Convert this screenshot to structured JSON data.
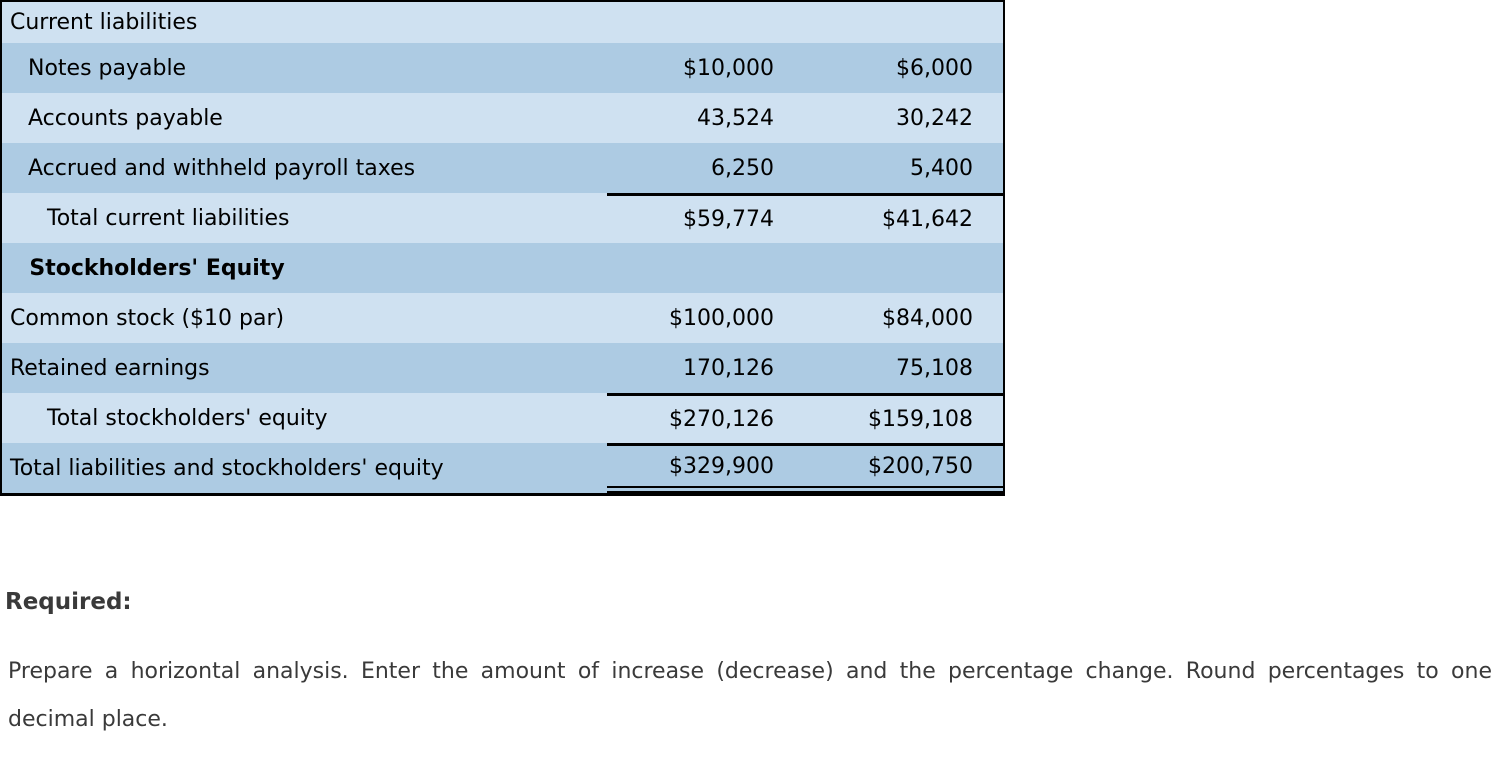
{
  "table": {
    "rows": [
      {
        "label": "Current liabilities",
        "col1": "",
        "col2": "",
        "indent": 0,
        "shade": "light"
      },
      {
        "label": "Notes payable",
        "col1": "$10,000",
        "col2": "$6,000",
        "indent": 1,
        "shade": "dark"
      },
      {
        "label": "Accounts payable",
        "col1": "43,524",
        "col2": "30,242",
        "indent": 1,
        "shade": "light"
      },
      {
        "label": "Accrued and withheld payroll taxes",
        "col1": "6,250",
        "col2": "5,400",
        "indent": 1,
        "shade": "dark"
      },
      {
        "label": "Total current liabilities",
        "col1": "$59,774",
        "col2": "$41,642",
        "indent": 2,
        "shade": "light",
        "rule_top": true
      },
      {
        "label": "Stockholders' Equity",
        "col1": "",
        "col2": "",
        "indent": 0,
        "shade": "dark",
        "section_header": true
      },
      {
        "label": "Common stock ($10 par)",
        "col1": "$100,000",
        "col2": "$84,000",
        "indent": 0,
        "shade": "light"
      },
      {
        "label": "Retained earnings",
        "col1": "170,126",
        "col2": "75,108",
        "indent": 0,
        "shade": "dark"
      },
      {
        "label": "Total stockholders' equity",
        "col1": "$270,126",
        "col2": "$159,108",
        "indent": 2,
        "shade": "light",
        "rule_top": true
      },
      {
        "label": "Total liabilities and stockholders' equity",
        "col1": "$329,900",
        "col2": "$200,750",
        "indent": 0,
        "shade": "dark",
        "rule_top": true,
        "rule_bottom": "double"
      }
    ]
  },
  "required": {
    "heading": "Required:",
    "instructions": "Prepare a horizontal analysis. Enter the amount of increase (decrease) and the percentage change. Round percentages to one decimal place."
  },
  "colors": {
    "row_light": "#cfe1f1",
    "row_dark": "#adcbe3",
    "rule": "#000000",
    "table_text": "#000000",
    "body_text": "#3a3a3a"
  }
}
